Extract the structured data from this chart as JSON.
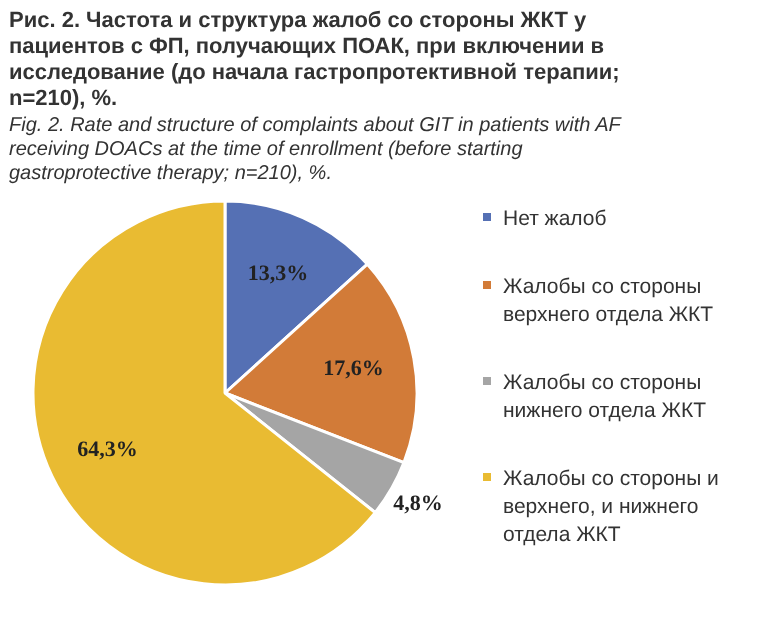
{
  "chart_data": {
    "type": "pie",
    "title": "Рис. 2. Частота и структура жалоб со стороны ЖКТ у пациентов с ФП, получающих ПОАК, при включении в исследование (до начала гастропротективной терапии; n=210), %.",
    "subtitle": "Fig. 2. Rate and structure of complaints about GIT in patients with AF receiving DOACs at the time of enrollment (before starting gastroprotective therapy; n=210), %.",
    "categories": [
      "Нет жалоб",
      "Жалобы со стороны верхнего отдела ЖКТ",
      "Жалобы со стороны нижнего отдела ЖКТ",
      "Жалобы со стороны и верхнего, и нижнего отдела ЖКТ"
    ],
    "values": [
      13.3,
      17.6,
      4.8,
      64.3
    ],
    "colors": [
      "#5570b4",
      "#d27b38",
      "#a5a5a5",
      "#e9bb32"
    ],
    "value_labels": [
      "13,3%",
      "17,6%",
      "4,8%",
      "64,3%"
    ],
    "legend": "right"
  }
}
